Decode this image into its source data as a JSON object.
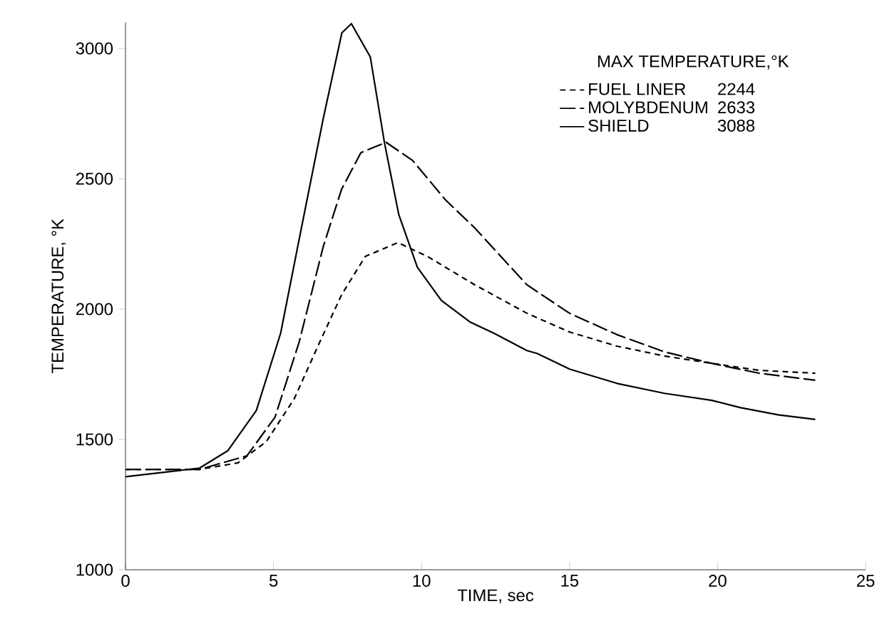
{
  "chart_data": {
    "type": "line",
    "xlabel": "TIME, sec",
    "ylabel": "TEMPERATURE, °K",
    "legend_title": "MAX TEMPERATURE,°K",
    "annotations": [
      "2244",
      "2633",
      "3088"
    ],
    "xlim": [
      0,
      25
    ],
    "ylim": [
      1000,
      3100
    ],
    "xticks": [
      0,
      5,
      10,
      15,
      20,
      25
    ],
    "yticks": [
      1000,
      1500,
      2000,
      2500,
      3000
    ],
    "legend": "top right",
    "grid": false,
    "marker": "none",
    "series": [
      {
        "name": "FUEL LINER",
        "color": "#000000",
        "line_style": "dashed",
        "x": [
          0,
          2.5,
          3.8,
          4.76,
          5.7,
          6.5,
          7.3,
          8.1,
          9.2,
          10.2,
          11.8,
          13.56,
          15,
          16.6,
          18.2,
          19.8,
          21.4,
          23.3
        ],
        "values": [
          1385,
          1385,
          1410,
          1492,
          1656,
          1858,
          2055,
          2202,
          2255,
          2202,
          2093,
          1984,
          1912,
          1858,
          1820,
          1792,
          1765,
          1754
        ]
      },
      {
        "name": "MOLYBDENUM",
        "color": "#000000",
        "line_style": "dashed",
        "x": [
          0,
          2.5,
          4.1,
          5.05,
          5.87,
          6.68,
          7.3,
          7.95,
          8.8,
          9.7,
          10.8,
          11.8,
          13.56,
          15,
          16.6,
          18.2,
          19.8,
          21.4,
          23.3
        ],
        "values": [
          1385,
          1385,
          1437,
          1585,
          1875,
          2240,
          2460,
          2600,
          2640,
          2570,
          2420,
          2311,
          2093,
          1984,
          1902,
          1836,
          1792,
          1754,
          1727
        ]
      },
      {
        "name": "SHIELD",
        "color": "#000000",
        "line_style": "solid",
        "x": [
          0,
          2.5,
          3.46,
          4.42,
          5.24,
          5.87,
          6.68,
          7.31,
          7.63,
          8.27,
          8.75,
          9.23,
          9.86,
          10.67,
          11.63,
          12.45,
          13.56,
          13.9,
          15,
          16.6,
          18.2,
          19.8,
          20.77,
          22.07,
          23.3
        ],
        "values": [
          1357,
          1390,
          1457,
          1611,
          1907,
          2270,
          2731,
          3060,
          3095,
          2967,
          2637,
          2363,
          2160,
          2033,
          1951,
          1907,
          1841,
          1830,
          1770,
          1715,
          1677,
          1650,
          1622,
          1594,
          1577
        ]
      }
    ]
  }
}
